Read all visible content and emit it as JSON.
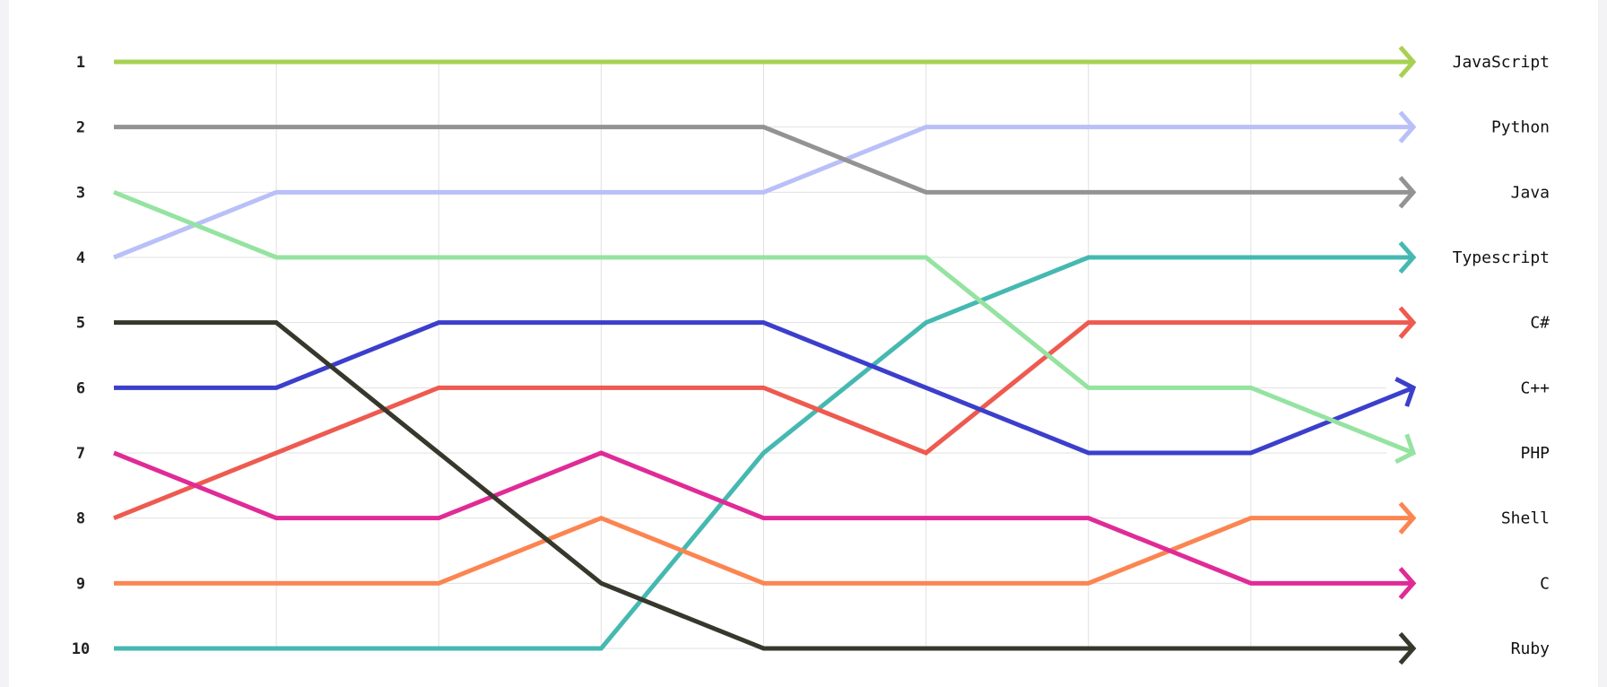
{
  "chart_data": {
    "type": "line",
    "subtype": "bump",
    "title": "",
    "xlabel": "",
    "ylabel": "",
    "x": [
      0,
      1,
      2,
      3,
      4,
      5,
      6,
      7,
      8
    ],
    "y_ticks": [
      "1",
      "2",
      "3",
      "4",
      "5",
      "6",
      "7",
      "8",
      "9",
      "10"
    ],
    "ylim": [
      1,
      10
    ],
    "y_inverted": true,
    "grid": "vertical and horizontal",
    "series": [
      {
        "name": "JavaScript",
        "color": "#a8d152",
        "values": [
          1,
          1,
          1,
          1,
          1,
          1,
          1,
          1,
          1
        ]
      },
      {
        "name": "Python",
        "color": "#b9c0f8",
        "values": [
          4,
          3,
          3,
          3,
          3,
          2,
          2,
          2,
          2
        ]
      },
      {
        "name": "Java",
        "color": "#939393",
        "values": [
          2,
          2,
          2,
          2,
          2,
          3,
          3,
          3,
          3
        ]
      },
      {
        "name": "Typescript",
        "color": "#45b9b1",
        "values": [
          10,
          10,
          10,
          10,
          7,
          5,
          4,
          4,
          4
        ]
      },
      {
        "name": "C#",
        "color": "#ee5a50",
        "values": [
          8,
          7,
          6,
          6,
          6,
          7,
          5,
          5,
          5
        ]
      },
      {
        "name": "C++",
        "color": "#3b3fcb",
        "values": [
          6,
          6,
          5,
          5,
          5,
          6,
          7,
          7,
          6
        ]
      },
      {
        "name": "PHP",
        "color": "#95e3a1",
        "values": [
          3,
          4,
          4,
          4,
          4,
          4,
          6,
          6,
          7
        ]
      },
      {
        "name": "Shell",
        "color": "#fb8551",
        "values": [
          9,
          9,
          9,
          8,
          9,
          9,
          9,
          8,
          8
        ]
      },
      {
        "name": "C",
        "color": "#e02b97",
        "values": [
          7,
          8,
          8,
          7,
          8,
          8,
          8,
          9,
          9
        ]
      },
      {
        "name": "Ruby",
        "color": "#37382c",
        "values": [
          5,
          5,
          7,
          9,
          10,
          10,
          10,
          10,
          10
        ]
      }
    ]
  }
}
